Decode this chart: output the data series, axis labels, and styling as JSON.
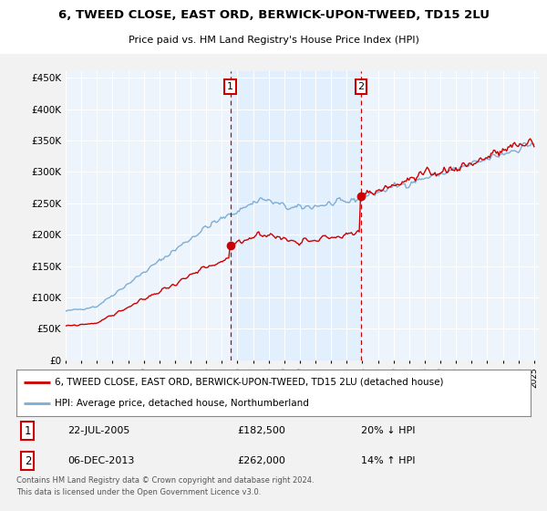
{
  "title": "6, TWEED CLOSE, EAST ORD, BERWICK-UPON-TWEED, TD15 2LU",
  "subtitle": "Price paid vs. HM Land Registry's House Price Index (HPI)",
  "ylim": [
    0,
    460000
  ],
  "yticks": [
    0,
    50000,
    100000,
    150000,
    200000,
    250000,
    300000,
    350000,
    400000,
    450000
  ],
  "ytick_labels": [
    "£0",
    "£50K",
    "£100K",
    "£150K",
    "£200K",
    "£250K",
    "£300K",
    "£350K",
    "£400K",
    "£450K"
  ],
  "hpi_color": "#7dadd4",
  "price_color": "#cc0000",
  "annotation_color": "#cc0000",
  "shade_color": "#ddeeff",
  "marker1_date_x": 2005.55,
  "marker1_price": 182500,
  "marker1_label": "22-JUL-2005",
  "marker1_price_label": "£182,500",
  "marker1_pct_label": "20% ↓ HPI",
  "marker2_date_x": 2013.92,
  "marker2_price": 262000,
  "marker2_label": "06-DEC-2013",
  "marker2_price_label": "£262,000",
  "marker2_pct_label": "14% ↑ HPI",
  "legend_line1": "6, TWEED CLOSE, EAST ORD, BERWICK-UPON-TWEED, TD15 2LU (detached house)",
  "legend_line2": "HPI: Average price, detached house, Northumberland",
  "footer1": "Contains HM Land Registry data © Crown copyright and database right 2024.",
  "footer2": "This data is licensed under the Open Government Licence v3.0.",
  "bg_color": "#eef4fb",
  "fig_bg": "#f2f2f2",
  "xmin": 1995,
  "xmax": 2025.3,
  "grid_color": "#ffffff"
}
